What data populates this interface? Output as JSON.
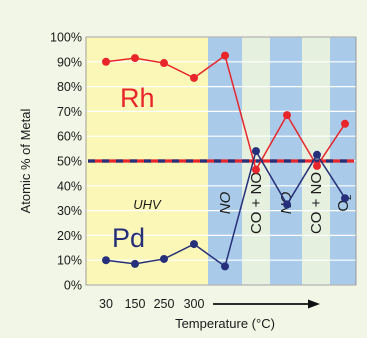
{
  "chart_data": {
    "type": "line",
    "xlabel": "Temperature (°C)",
    "ylabel": "Atomic % of Metal",
    "ylim": [
      0,
      100
    ],
    "yticks": [
      "0%",
      "10%",
      "20%",
      "30%",
      "40%",
      "50%",
      "60%",
      "70%",
      "80%",
      "90%",
      "100%"
    ],
    "x_tick_labels": [
      "30",
      "150",
      "250",
      "300"
    ],
    "grid": true,
    "series": [
      {
        "name": "Rh",
        "color": "#e8252a",
        "values": [
          90,
          91.5,
          89.5,
          83.5,
          92.5,
          46.5,
          68.5,
          48,
          65
        ]
      },
      {
        "name": "Pd",
        "color": "#26307a",
        "values": [
          10,
          8.5,
          10.5,
          16.5,
          7.5,
          54,
          32.5,
          52.5,
          35
        ]
      }
    ],
    "reference_line": {
      "value": 50,
      "colors": [
        "#e8252a",
        "#26307a"
      ]
    },
    "regions": [
      {
        "label": "UHV",
        "color": "#fbf7b7"
      },
      {
        "label": "NO",
        "color": "#a9cbe9"
      },
      {
        "label": "CO + NO",
        "color": "#e5f0de"
      },
      {
        "label": "NO",
        "color": "#a9cbe9"
      },
      {
        "label": "CO + NO",
        "color": "#e5f0de"
      },
      {
        "label": "O2",
        "color": "#a9cbe9"
      }
    ],
    "background_color": "#f2f6e6"
  }
}
